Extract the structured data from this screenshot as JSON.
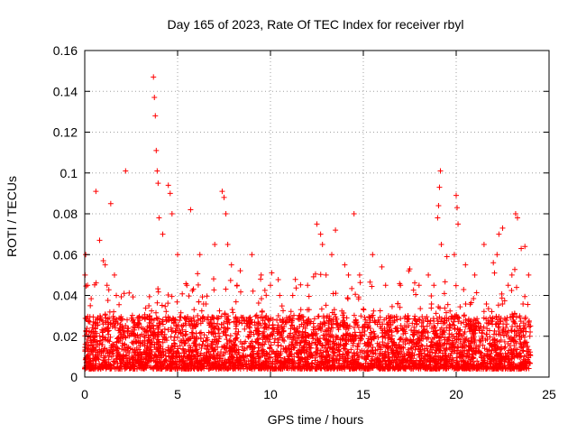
{
  "chart_data": {
    "type": "scatter",
    "title": "Day 165 of 2023, Rate Of TEC Index for receiver rbyl",
    "xlabel": "GPS time / hours",
    "ylabel": "ROTI / TECUs",
    "xlim": [
      0,
      25
    ],
    "ylim": [
      0,
      0.16
    ],
    "grid": true,
    "marker": "+",
    "color": "#ff0000",
    "xticks": [
      0,
      5,
      10,
      15,
      20,
      25
    ],
    "xtick_labels": [
      "0",
      "5",
      "10",
      "15",
      "20",
      "25"
    ],
    "yticks": [
      0,
      0.02,
      0.04,
      0.06,
      0.08,
      0.1,
      0.12,
      0.14,
      0.16
    ],
    "ytick_labels": [
      "0",
      "0.02",
      "0.04",
      "0.06",
      "0.08",
      "0.1",
      "0.12",
      "0.14",
      "0.16"
    ],
    "series": [
      {
        "name": "ROTI",
        "x": [
          0.05,
          0.15,
          0.3,
          0.6,
          0.8,
          1.0,
          1.1,
          1.2,
          1.4,
          1.6,
          1.7,
          2.2,
          3.5,
          3.7,
          3.75,
          3.8,
          3.85,
          3.9,
          3.95,
          4.0,
          4.2,
          4.5,
          4.6,
          4.7,
          5.0,
          5.5,
          5.7,
          6.2,
          7.0,
          7.4,
          7.5,
          7.6,
          7.7,
          7.9,
          8.2,
          9.0,
          9.5,
          10.0,
          10.5,
          11.2,
          12.0,
          12.5,
          12.7,
          12.8,
          13.3,
          13.5,
          14.0,
          14.2,
          14.5,
          14.8,
          15.5,
          16.0,
          16.2,
          17.0,
          17.5,
          18.0,
          18.5,
          18.8,
          19.0,
          19.05,
          19.1,
          19.15,
          19.2,
          19.5,
          19.9,
          20.0,
          20.05,
          20.1,
          20.5,
          21.0,
          21.5,
          22.0,
          22.2,
          22.3,
          22.5,
          22.8,
          23.0,
          23.2,
          23.3,
          23.5,
          23.7,
          23.9
        ],
        "y": [
          0.06,
          0.045,
          0.035,
          0.091,
          0.067,
          0.057,
          0.055,
          0.045,
          0.085,
          0.05,
          0.04,
          0.101,
          0.03,
          0.147,
          0.137,
          0.128,
          0.111,
          0.101,
          0.095,
          0.078,
          0.07,
          0.094,
          0.09,
          0.08,
          0.06,
          0.045,
          0.082,
          0.06,
          0.065,
          0.091,
          0.088,
          0.08,
          0.065,
          0.055,
          0.045,
          0.06,
          0.05,
          0.045,
          0.04,
          0.04,
          0.045,
          0.075,
          0.07,
          0.065,
          0.06,
          0.072,
          0.055,
          0.05,
          0.08,
          0.05,
          0.06,
          0.054,
          0.045,
          0.045,
          0.053,
          0.045,
          0.05,
          0.045,
          0.078,
          0.084,
          0.093,
          0.101,
          0.065,
          0.059,
          0.06,
          0.089,
          0.083,
          0.075,
          0.055,
          0.05,
          0.065,
          0.056,
          0.06,
          0.07,
          0.073,
          0.045,
          0.05,
          0.08,
          0.078,
          0.063,
          0.064,
          0.05
        ],
        "density_band": {
          "description": "dense scatter of thousands of points between roughly 0.004 and 0.03 ROTI across 0-24 hours",
          "x_range": [
            0,
            24
          ],
          "y_floor": 0.004,
          "y_typical_max": 0.03
        }
      }
    ]
  }
}
